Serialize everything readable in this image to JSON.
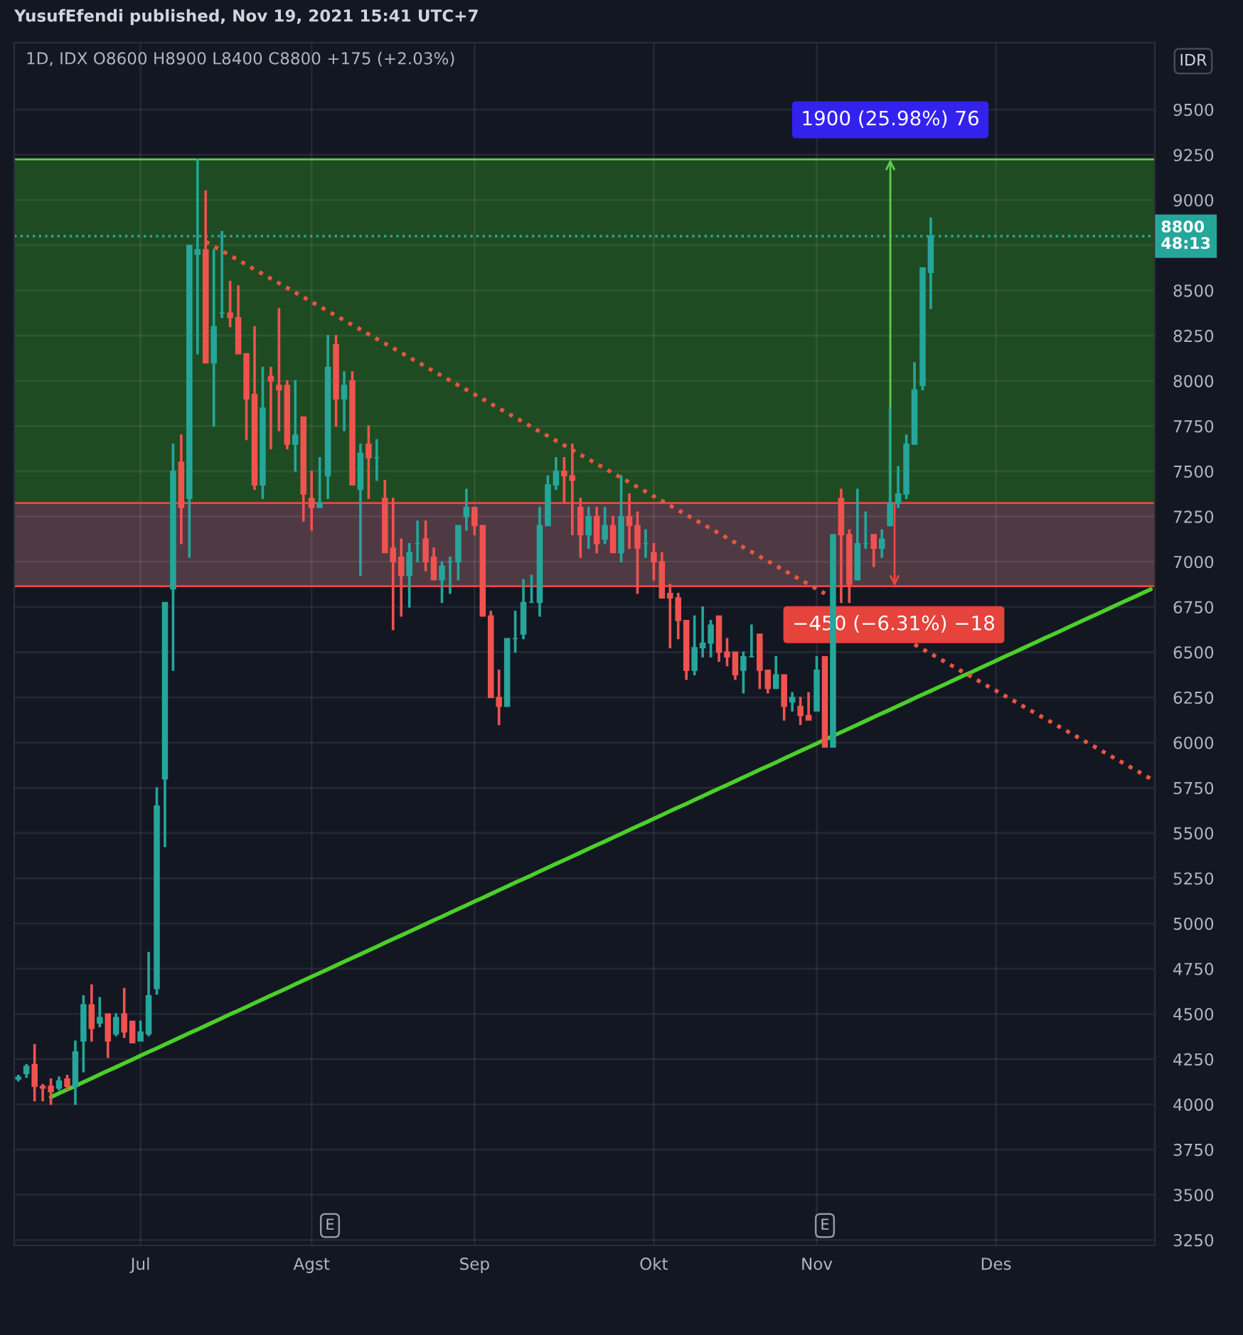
{
  "chart_data": {
    "type": "candlestick",
    "title": "YusufEfendi published, Nov 19, 2021 15:41 UTC+7",
    "subtitle": "1D, IDX O8600 H8900 L8400 C8800 +175 (+2.03%)",
    "annotations": [
      "IDR",
      "E",
      "E"
    ],
    "categories": [
      null,
      null,
      null,
      null,
      null,
      null,
      null,
      null,
      null,
      null,
      null,
      null,
      null,
      null,
      null,
      "Jul",
      null,
      null,
      null,
      null,
      null,
      null,
      null,
      null,
      null,
      null,
      null,
      null,
      null,
      null,
      null,
      null,
      null,
      null,
      null,
      null,
      "Agst",
      null,
      null,
      null,
      null,
      null,
      null,
      null,
      null,
      null,
      null,
      null,
      null,
      null,
      null,
      null,
      null,
      null,
      null,
      null,
      "Sep",
      null,
      null,
      null,
      null,
      null,
      null,
      null,
      null,
      null,
      null,
      null,
      null,
      null,
      null,
      null,
      null,
      null,
      null,
      null,
      null,
      null,
      "Okt",
      null,
      null,
      null,
      null,
      null,
      null,
      null,
      null,
      null,
      null,
      null,
      null,
      null,
      null,
      null,
      null,
      null,
      null,
      null,
      "Nov",
      null,
      null,
      null,
      null,
      null,
      null,
      null,
      null,
      null,
      null,
      null,
      null,
      null,
      null,
      null,
      null,
      null,
      null,
      null,
      null,
      null,
      "Des",
      null,
      null,
      null,
      null,
      null,
      null,
      null,
      null,
      null,
      null,
      null,
      null,
      null,
      null,
      null,
      null,
      null,
      null,
      null
    ],
    "ohlc": [
      [
        4140,
        4160,
        4130,
        4150
      ],
      [
        4170,
        4220,
        4150,
        4210
      ],
      [
        4220,
        4330,
        4020,
        4100
      ],
      [
        4100,
        4110,
        4020,
        4090
      ],
      [
        4100,
        4140,
        4000,
        4070
      ],
      [
        4090,
        4150,
        4080,
        4130
      ],
      [
        4140,
        4160,
        4080,
        4100
      ],
      [
        4100,
        4350,
        4000,
        4290
      ],
      [
        4350,
        4600,
        4180,
        4550
      ],
      [
        4550,
        4660,
        4350,
        4420
      ],
      [
        4450,
        4590,
        4430,
        4480
      ],
      [
        4500,
        4500,
        4260,
        4350
      ],
      [
        4390,
        4500,
        4380,
        4480
      ],
      [
        4500,
        4640,
        4370,
        4400
      ],
      [
        4460,
        4460,
        4340,
        4340
      ],
      [
        4350,
        4460,
        4350,
        4400
      ],
      [
        4390,
        4840,
        4380,
        4600
      ],
      [
        4640,
        5750,
        4610,
        5650
      ],
      [
        5800,
        6775,
        5425,
        6775
      ],
      [
        6850,
        7650,
        6400,
        7500
      ],
      [
        7550,
        7700,
        7100,
        7300
      ],
      [
        7350,
        8750,
        7025,
        8750
      ],
      [
        8700,
        9225,
        8150,
        8725
      ],
      [
        8725,
        9050,
        8100,
        8100
      ],
      [
        8100,
        8725,
        7750,
        8300
      ],
      [
        8375,
        8825,
        8350,
        8375
      ],
      [
        8375,
        8550,
        8300,
        8350
      ],
      [
        8350,
        8525,
        8150,
        8150
      ],
      [
        8150,
        8150,
        7675,
        7900
      ],
      [
        7925,
        8300,
        7400,
        7425
      ],
      [
        7425,
        8075,
        7350,
        7850
      ],
      [
        8025,
        8075,
        7625,
        8000
      ],
      [
        7975,
        8400,
        7725,
        7950
      ],
      [
        7975,
        8000,
        7625,
        7650
      ],
      [
        7650,
        8000,
        7500,
        7700
      ],
      [
        7800,
        7800,
        7225,
        7375
      ],
      [
        7350,
        7500,
        7175,
        7300
      ],
      [
        7300,
        7575,
        7300,
        7325
      ],
      [
        7475,
        8250,
        7350,
        8075
      ],
      [
        8200,
        8250,
        7750,
        7900
      ],
      [
        7900,
        8050,
        7725,
        7975
      ],
      [
        8000,
        8050,
        7425,
        7425
      ],
      [
        7400,
        7650,
        6925,
        7600
      ],
      [
        7650,
        7750,
        7350,
        7575
      ],
      [
        7575,
        7675,
        7450,
        7575
      ],
      [
        7350,
        7450,
        7050,
        7050
      ],
      [
        7075,
        7350,
        6625,
        7000
      ],
      [
        7025,
        7125,
        6700,
        6925
      ],
      [
        6925,
        7100,
        6750,
        7050
      ],
      [
        7100,
        7225,
        7000,
        7100
      ],
      [
        7125,
        7225,
        6950,
        7000
      ],
      [
        7025,
        7075,
        6900,
        6900
      ],
      [
        6900,
        7000,
        6775,
        6975
      ],
      [
        7000,
        7025,
        6825,
        7000
      ],
      [
        7000,
        7200,
        6900,
        7200
      ],
      [
        7250,
        7400,
        7175,
        7300
      ],
      [
        7300,
        7300,
        7150,
        7200
      ],
      [
        7200,
        7200,
        6700,
        6700
      ],
      [
        6700,
        6725,
        6250,
        6250
      ],
      [
        6250,
        6400,
        6100,
        6200
      ],
      [
        6200,
        6575,
        6200,
        6575
      ],
      [
        6575,
        6725,
        6500,
        6575
      ],
      [
        6600,
        6900,
        6575,
        6775
      ],
      [
        6775,
        6925,
        6775,
        6775
      ],
      [
        6775,
        7300,
        6700,
        7200
      ],
      [
        7200,
        7475,
        7200,
        7425
      ],
      [
        7425,
        7575,
        7400,
        7500
      ],
      [
        7500,
        7575,
        7325,
        7475
      ],
      [
        7475,
        7650,
        7150,
        7450
      ],
      [
        7300,
        7350,
        7025,
        7150
      ],
      [
        7150,
        7300,
        7075,
        7250
      ],
      [
        7250,
        7300,
        7050,
        7100
      ],
      [
        7125,
        7300,
        7100,
        7200
      ],
      [
        7200,
        7250,
        7050,
        7050
      ],
      [
        7050,
        7475,
        7000,
        7250
      ],
      [
        7250,
        7375,
        7075,
        7200
      ],
      [
        7200,
        7275,
        6825,
        7075
      ],
      [
        7100,
        7175,
        7025,
        7100
      ],
      [
        7050,
        7100,
        6900,
        7000
      ],
      [
        7000,
        7050,
        6800,
        6800
      ],
      [
        6825,
        6875,
        6525,
        6800
      ],
      [
        6800,
        6825,
        6575,
        6675
      ],
      [
        6675,
        6675,
        6350,
        6400
      ],
      [
        6400,
        6700,
        6375,
        6525
      ],
      [
        6525,
        6750,
        6475,
        6550
      ],
      [
        6550,
        6675,
        6475,
        6650
      ],
      [
        6700,
        6700,
        6450,
        6500
      ],
      [
        6500,
        6575,
        6425,
        6475
      ],
      [
        6500,
        6500,
        6350,
        6375
      ],
      [
        6400,
        6500,
        6275,
        6475
      ],
      [
        6475,
        6650,
        6475,
        6475
      ],
      [
        6600,
        6600,
        6300,
        6400
      ],
      [
        6400,
        6400,
        6275,
        6300
      ],
      [
        6300,
        6475,
        6300,
        6375
      ],
      [
        6375,
        6375,
        6125,
        6200
      ],
      [
        6225,
        6275,
        6175,
        6250
      ],
      [
        6200,
        6250,
        6100,
        6150
      ],
      [
        6150,
        6275,
        6125,
        6125
      ],
      [
        6175,
        6475,
        6175,
        6400
      ],
      [
        6475,
        6475,
        5975,
        5975
      ],
      [
        5975,
        7150,
        5975,
        7150
      ],
      [
        7350,
        7400,
        6775,
        7150
      ],
      [
        7150,
        7175,
        6775,
        6875
      ],
      [
        6900,
        7400,
        6900,
        7100
      ],
      [
        7100,
        7275,
        7075,
        7100
      ],
      [
        7150,
        7150,
        6975,
        7075
      ],
      [
        7075,
        7175,
        7025,
        7125
      ],
      [
        7200,
        7850,
        7200,
        7325
      ],
      [
        7325,
        7525,
        7300,
        7375
      ],
      [
        7375,
        7700,
        7350,
        7650
      ],
      [
        7650,
        8100,
        7650,
        7950
      ],
      [
        7975,
        8625,
        7950,
        8625
      ],
      [
        8600,
        8900,
        8400,
        8800
      ],
      null,
      null,
      null,
      null,
      null,
      null,
      null,
      null,
      null,
      null,
      null,
      null,
      null,
      null,
      null,
      null,
      null,
      null,
      null,
      null,
      null,
      null,
      null,
      null,
      null,
      null,
      null
    ],
    "series": [
      {
        "type": "line",
        "color": "#4ccf2a",
        "line_style": "solid",
        "values": [
          null,
          null,
          null,
          null,
          4040,
          4061,
          4082,
          4102,
          4123,
          4144,
          4165,
          4186,
          4206,
          4227,
          4248,
          4269,
          4290,
          4310,
          4331,
          4352,
          4373,
          4394,
          4414,
          4435,
          4456,
          4477,
          4498,
          4518,
          4539,
          4560,
          4581,
          4602,
          4622,
          4643,
          4664,
          4685,
          4706,
          4726,
          4747,
          4768,
          4789,
          4810,
          4830,
          4851,
          4872,
          4893,
          4914,
          4934,
          4955,
          4976,
          4997,
          5018,
          5038,
          5059,
          5080,
          5101,
          5122,
          5142,
          5163,
          5184,
          5205,
          5226,
          5246,
          5267,
          5288,
          5309,
          5330,
          5350,
          5371,
          5392,
          5413,
          5434,
          5454,
          5475,
          5496,
          5517,
          5538,
          5558,
          5579,
          5600,
          5621,
          5642,
          5662,
          5683,
          5704,
          5725,
          5746,
          5766,
          5787,
          5808,
          5829,
          5850,
          5870,
          5891,
          5912,
          5933,
          5954,
          5974,
          5995,
          6016,
          6037,
          6058,
          6078,
          6099,
          6120,
          6141,
          6162,
          6182,
          6203,
          6224,
          6245,
          6266,
          6286,
          6307,
          6328,
          6349,
          6370,
          6390,
          6411,
          6432,
          6453,
          6474,
          6494,
          6515,
          6536,
          6557,
          6578,
          6598,
          6619,
          6640,
          6661,
          6682,
          6702,
          6723,
          6744,
          6765,
          6786,
          6806,
          6827,
          6848
        ]
      },
      {
        "type": "line",
        "color": "#e8553f",
        "line_style": "dotted",
        "values": [
          null,
          null,
          null,
          null,
          null,
          null,
          null,
          null,
          null,
          null,
          null,
          null,
          null,
          null,
          null,
          null,
          null,
          null,
          null,
          null,
          null,
          null,
          null,
          8770,
          8744,
          8719,
          8693,
          8668,
          8642,
          8616,
          8591,
          8565,
          8540,
          8514,
          8488,
          8463,
          8437,
          8412,
          8386,
          8360,
          8335,
          8309,
          8284,
          8258,
          8232,
          8207,
          8181,
          8156,
          8130,
          8104,
          8079,
          8053,
          8028,
          8002,
          7976,
          7951,
          7925,
          7900,
          7874,
          7848,
          7823,
          7797,
          7772,
          7746,
          7720,
          7695,
          7669,
          7644,
          7618,
          7592,
          7567,
          7541,
          7516,
          7490,
          7464,
          7439,
          7413,
          7388,
          7362,
          7336,
          7311,
          7285,
          7260,
          7234,
          7208,
          7183,
          7157,
          7132,
          7106,
          7080,
          7055,
          7029,
          7004,
          6978,
          6952,
          6927,
          6901,
          6876,
          6850,
          6824,
          null,
          null,
          null,
          null,
          null,
          null,
          null,
          null,
          null,
          null,
          6543,
          6517,
          6492,
          6466,
          6440,
          6415,
          6389,
          6364,
          6338,
          6312,
          6287,
          6261,
          6236,
          6210,
          6184,
          6159,
          6133,
          6108,
          6082,
          6056,
          6031,
          6005,
          5980,
          5954,
          5928,
          5903,
          5877,
          5852,
          5826,
          5800
        ]
      }
    ],
    "bands": [
      {
        "axis": "y",
        "from": 7325,
        "to": 9225,
        "label": "1900 (25.98%) 76",
        "color": "#1f4b22"
      },
      {
        "axis": "y",
        "from": 6865,
        "to": 7325,
        "label": "−450 (−6.31%) −18",
        "color": "#4f3a43"
      }
    ],
    "ref_lines": [
      {
        "axis": "y",
        "value": 9225,
        "color": "#5fcf4a",
        "line_style": "solid"
      },
      {
        "axis": "y",
        "value": 7325,
        "color": "#f0463c",
        "line_style": "solid"
      },
      {
        "axis": "y",
        "value": 6865,
        "color": "#f0463c",
        "line_style": "solid"
      },
      {
        "axis": "y",
        "value": 8800,
        "label": "8800\n48:13",
        "color": "#26a69a",
        "line_style": "dotted"
      }
    ],
    "ylim": [
      3220,
      9870
    ],
    "yticks": [
      3250,
      3500,
      3750,
      4000,
      4250,
      4500,
      4750,
      5000,
      5250,
      5500,
      5750,
      6000,
      6250,
      6500,
      6750,
      7000,
      7250,
      7500,
      7750,
      8000,
      8250,
      8500,
      {
        "value": 8750,
        "label": null
      },
      9000,
      9250,
      9500
    ],
    "grid": true
  }
}
